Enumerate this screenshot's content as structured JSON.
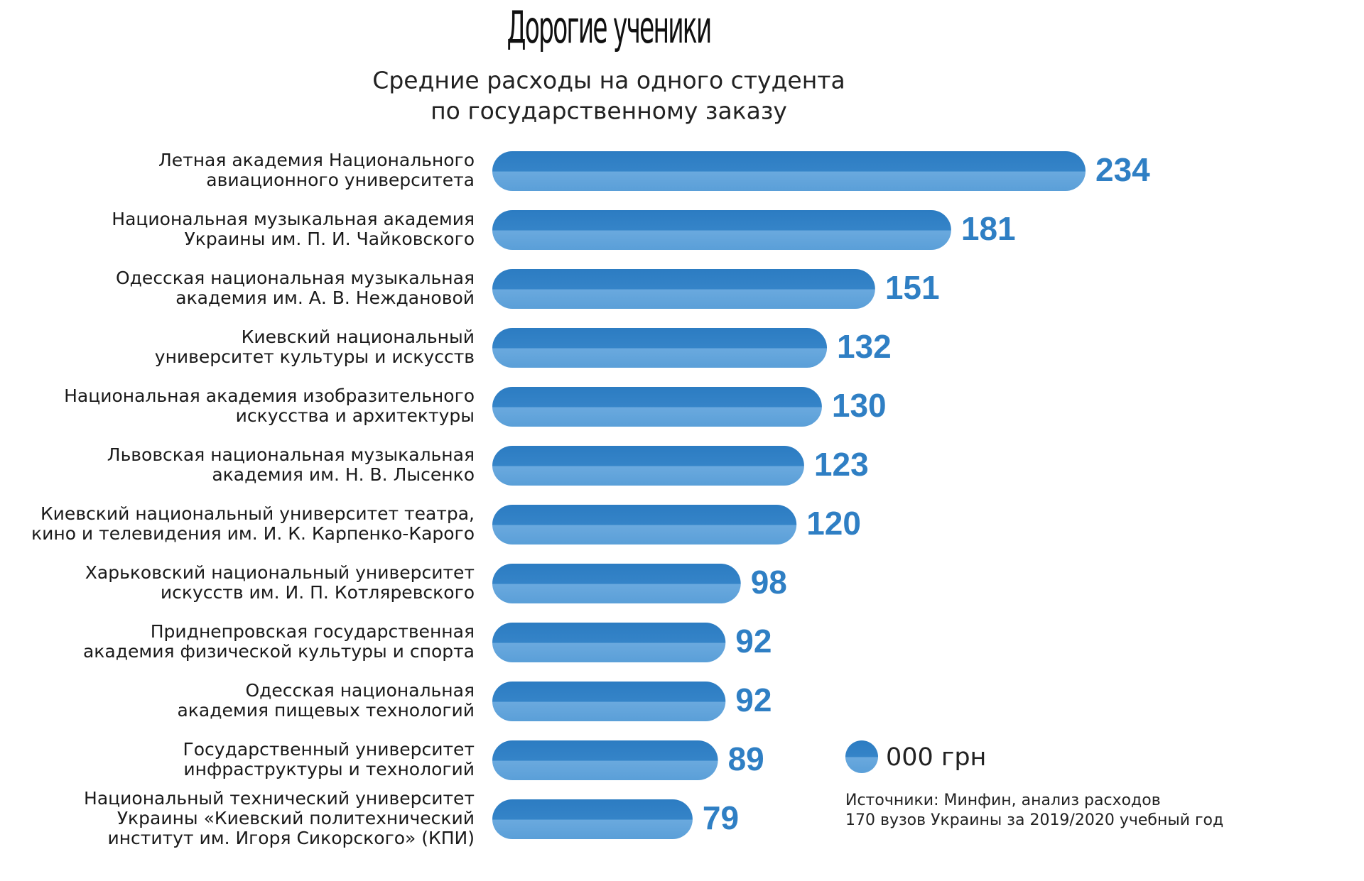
{
  "chart_data": {
    "type": "bar",
    "orientation": "horizontal",
    "title": "Дорогие ученики",
    "subtitle": [
      "Средние расходы на одного студента",
      "по государственному заказу"
    ],
    "categories": [
      [
        "Летная академия Национального",
        "авиационного университета"
      ],
      [
        "Национальная музыкальная академия",
        "Украины им. П. И. Чайковского"
      ],
      [
        "Одесская национальная музыкальная",
        "академия им. А. В. Неждановой"
      ],
      [
        "Киевский национальный",
        "университет культуры и искусств"
      ],
      [
        "Национальная академия изобразительного",
        "искусства и архитектуры"
      ],
      [
        "Львовская национальная музыкальная",
        "академия им. Н. В. Лысенко"
      ],
      [
        "Киевский национальный университет театра,",
        "кино и телевидения им. И. К. Карпенко-Карого"
      ],
      [
        "Харьковский национальный университет",
        "искусств им. И. П. Котляревского"
      ],
      [
        "Приднепровская государственная",
        "академия физической культуры и спорта"
      ],
      [
        "Одесская национальная",
        "академия пищевых технологий"
      ],
      [
        "Государственный университет",
        "инфраструктуры и технологий"
      ],
      [
        "Национальный технический университет",
        "Украины «Киевский политехнический",
        "институт им. Игоря Сикорского» (КПИ)"
      ]
    ],
    "series": [
      {
        "name": "000 грн",
        "color": "#2f7fc4",
        "values": [
          234,
          181,
          151,
          132,
          130,
          123,
          120,
          98,
          92,
          92,
          89,
          79
        ]
      }
    ],
    "source": [
      "Источники: Минфин, анализ расходов",
      "170 вузов Украины за 2019/2020 учебный год"
    ]
  }
}
